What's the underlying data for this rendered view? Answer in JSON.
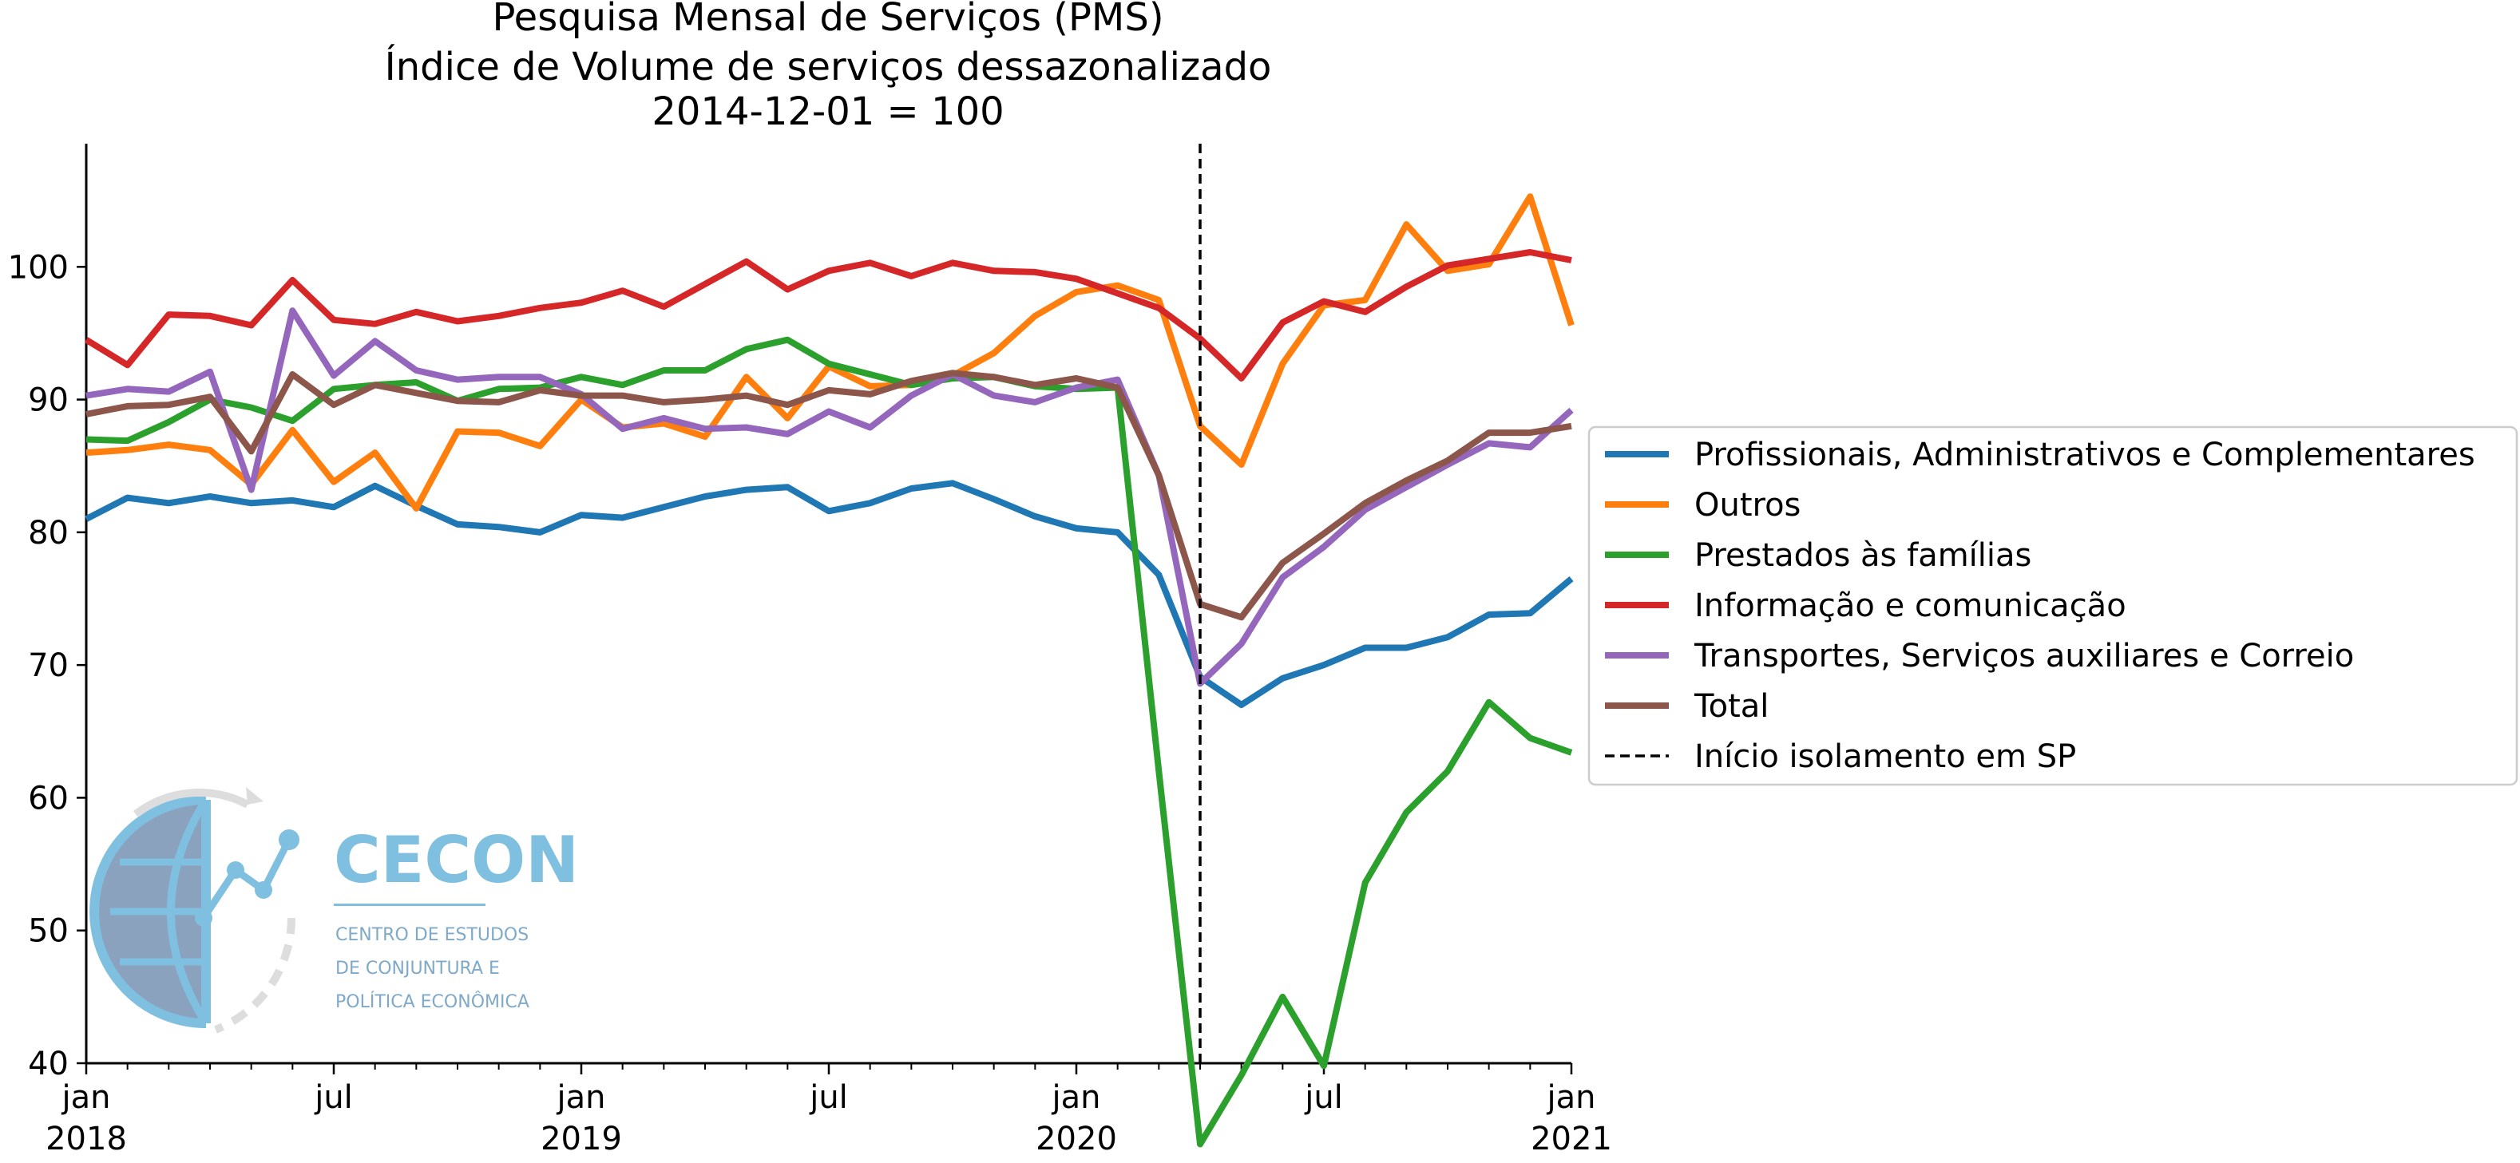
{
  "chart_data": {
    "type": "line",
    "title_lines": [
      "Pesquisa Mensal de Serviços (PMS)",
      "Índice de Volume de serviços dessazonalizado",
      "2014-12-01 = 100"
    ],
    "xlabel": "",
    "ylabel": "",
    "x": [
      "2018-01",
      "2018-02",
      "2018-03",
      "2018-04",
      "2018-05",
      "2018-06",
      "2018-07",
      "2018-08",
      "2018-09",
      "2018-10",
      "2018-11",
      "2018-12",
      "2019-01",
      "2019-02",
      "2019-03",
      "2019-04",
      "2019-05",
      "2019-06",
      "2019-07",
      "2019-08",
      "2019-09",
      "2019-10",
      "2019-11",
      "2019-12",
      "2020-01",
      "2020-02",
      "2020-03",
      "2020-04",
      "2020-05",
      "2020-06",
      "2020-07",
      "2020-08",
      "2020-09",
      "2020-10",
      "2020-11",
      "2020-12",
      "2021-01"
    ],
    "ylim": [
      30,
      109
    ],
    "yticks": [
      40,
      50,
      60,
      70,
      80,
      90,
      100
    ],
    "xticks": [
      {
        "x": "2018-01",
        "label": "jan",
        "year": "2018"
      },
      {
        "x": "2018-07",
        "label": "jul",
        "year": ""
      },
      {
        "x": "2019-01",
        "label": "jan",
        "year": "2019"
      },
      {
        "x": "2019-07",
        "label": "jul",
        "year": ""
      },
      {
        "x": "2020-01",
        "label": "jan",
        "year": "2020"
      },
      {
        "x": "2020-07",
        "label": "jul",
        "year": ""
      },
      {
        "x": "2021-01",
        "label": "jan",
        "year": "2021"
      }
    ],
    "series": [
      {
        "name": "Profissionais, Administrativos e Complementares",
        "color": "#1f77b4",
        "values": [
          81.0,
          82.6,
          82.2,
          82.7,
          82.2,
          82.4,
          81.9,
          83.5,
          82.0,
          80.6,
          80.4,
          80.0,
          81.3,
          81.1,
          81.9,
          82.7,
          83.2,
          83.4,
          81.6,
          82.2,
          83.3,
          83.7,
          82.5,
          81.2,
          80.3,
          80.0,
          76.8,
          69.1,
          67.0,
          69.0,
          70.0,
          71.3,
          71.3,
          72.1,
          73.8,
          73.9,
          76.5
        ]
      },
      {
        "name": "Outros",
        "color": "#ff7f0e",
        "values": [
          86.0,
          86.2,
          86.6,
          86.2,
          83.6,
          87.7,
          83.8,
          86.0,
          81.8,
          87.6,
          87.5,
          86.5,
          90.0,
          87.9,
          88.2,
          87.2,
          91.7,
          88.6,
          92.5,
          91.0,
          91.1,
          91.8,
          93.5,
          96.3,
          98.1,
          98.6,
          97.5,
          88.0,
          85.1,
          92.7,
          97.1,
          97.5,
          103.2,
          99.7,
          100.2,
          105.3,
          95.6
        ]
      },
      {
        "name": "Prestados às famílias",
        "color": "#2ca02c",
        "values": [
          87.0,
          86.9,
          88.3,
          90.0,
          89.4,
          88.4,
          90.8,
          91.1,
          91.3,
          89.9,
          90.8,
          90.9,
          91.7,
          91.1,
          92.2,
          92.2,
          93.8,
          94.5,
          92.7,
          91.9,
          91.1,
          91.6,
          91.7,
          91.0,
          90.8,
          90.9,
          62.0,
          33.9,
          39.1,
          45.0,
          39.8,
          53.6,
          58.9,
          62.0,
          67.2,
          64.5,
          63.4
        ]
      },
      {
        "name": "Informação e comunicação",
        "color": "#d62728",
        "values": [
          94.5,
          92.6,
          96.4,
          96.3,
          95.6,
          99.0,
          96.0,
          95.7,
          96.6,
          95.9,
          96.3,
          96.9,
          97.3,
          98.2,
          97.0,
          98.7,
          100.4,
          98.3,
          99.7,
          100.3,
          99.3,
          100.3,
          99.7,
          99.6,
          99.1,
          98.0,
          96.9,
          94.6,
          91.6,
          95.8,
          97.4,
          96.6,
          98.5,
          100.1,
          100.6,
          101.1,
          100.5
        ]
      },
      {
        "name": "Transportes, Serviços auxiliares e Correio",
        "color": "#9467bd",
        "values": [
          90.3,
          90.8,
          90.6,
          92.1,
          83.2,
          96.7,
          91.8,
          94.4,
          92.2,
          91.5,
          91.7,
          91.7,
          90.4,
          87.8,
          88.6,
          87.8,
          87.9,
          87.4,
          89.1,
          87.9,
          90.3,
          91.9,
          90.3,
          89.8,
          90.9,
          91.5,
          84.3,
          68.6,
          71.6,
          76.6,
          78.9,
          81.7,
          83.4,
          85.1,
          86.7,
          86.4,
          89.2
        ]
      },
      {
        "name": "Total",
        "color": "#8c564b",
        "values": [
          88.9,
          89.5,
          89.6,
          90.2,
          86.1,
          91.9,
          89.6,
          91.1,
          90.5,
          89.9,
          89.8,
          90.7,
          90.3,
          90.3,
          89.8,
          90.0,
          90.3,
          89.6,
          90.7,
          90.4,
          91.4,
          92.0,
          91.7,
          91.1,
          91.6,
          90.9,
          84.3,
          74.6,
          73.6,
          77.7,
          79.9,
          82.2,
          83.9,
          85.4,
          87.5,
          87.5,
          88.0
        ]
      }
    ],
    "vline": {
      "x": "2020-04",
      "label": "Início isolamento em SP",
      "color": "#000000",
      "style": "dashed"
    },
    "grid": false,
    "legend_position": "center-right, outside plot"
  },
  "logo": {
    "title": "CECON",
    "lines": [
      "CENTRO DE ESTUDOS",
      "DE CONJUNTURA E",
      "POLÍTICA ECONÔMICA"
    ],
    "color": "#7fbfe0"
  }
}
